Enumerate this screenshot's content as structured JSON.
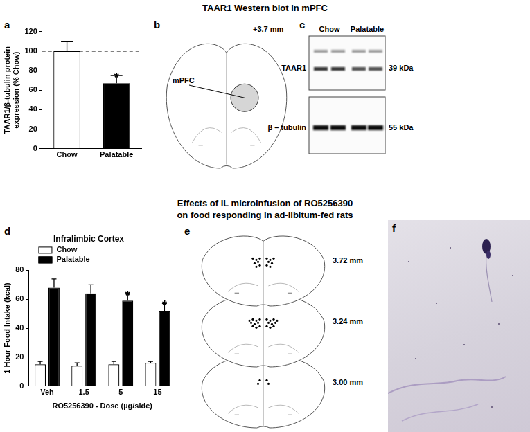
{
  "headings": [
    "TAAR1 Western blot in mPFC",
    "Effects of IL microinfusion of RO5256390",
    "on food responding in ad-libitum-fed rats"
  ],
  "panel_labels": [
    "a",
    "b",
    "c",
    "d",
    "e",
    "f"
  ],
  "chart_data": [
    {
      "type": "bar",
      "categories": [
        "Chow",
        "Palatable"
      ],
      "values": [
        100,
        67
      ],
      "errors": [
        10,
        8
      ],
      "colors": [
        "#ffffff",
        "#000000"
      ],
      "ylabel": [
        "TAAR1/β-tubulin protein",
        "expression (% Chow)"
      ],
      "ylim": [
        0,
        120
      ],
      "yticks": [
        0,
        20,
        40,
        60,
        80,
        100,
        120
      ],
      "grid": false,
      "reference_line": {
        "value": 100,
        "line_style": "dashed"
      },
      "annotations": [
        {
          "category": "Palatable",
          "text": "*"
        }
      ]
    },
    {
      "type": "bar",
      "title": "Infralimbic Cortex",
      "categories": [
        "Veh",
        "1.5",
        "5",
        "15"
      ],
      "series": [
        {
          "name": "Chow",
          "color": "#ffffff",
          "values": [
            15,
            14,
            15,
            16
          ],
          "errors": [
            2,
            2,
            2,
            1
          ]
        },
        {
          "name": "Palatable",
          "color": "#000000",
          "values": [
            68,
            64,
            59,
            52
          ],
          "errors": [
            6,
            6,
            5,
            5
          ]
        }
      ],
      "xlabel": "RO5256390 - Dose (µg/side)",
      "ylabel": "1 Hour Food Intake (kcal)",
      "ylim": [
        0,
        80
      ],
      "yticks": [
        0,
        20,
        40,
        60,
        80
      ],
      "grid": false,
      "legend": "top-left",
      "annotations": [
        {
          "series": "Palatable",
          "category": "5",
          "text": "*"
        },
        {
          "series": "Palatable",
          "category": "15",
          "text": "*"
        }
      ]
    }
  ],
  "atlas_b": {
    "region": "mPFC",
    "coordinate": "+3.7 mm"
  },
  "blot_c": {
    "lanes": [
      "Chow",
      "Palatable"
    ],
    "bands": [
      {
        "protein": "TAAR1",
        "size": "39 kDa"
      },
      {
        "protein": "β – tubulin",
        "size": "55 kDa"
      }
    ]
  },
  "atlas_e": {
    "sections": [
      {
        "label": "3.72 mm",
        "sites": 14
      },
      {
        "label": "3.24 mm",
        "sites": 20
      },
      {
        "label": "3.00 mm",
        "sites": 4
      }
    ]
  }
}
